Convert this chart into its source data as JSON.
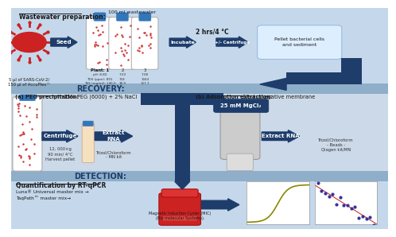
{
  "bg_top": "#c5d8eb",
  "bg_mid": "#ccd9e8",
  "bg_bot": "#ccd9e8",
  "bar_color": "#8eaec9",
  "arrow_color": "#1e3d6b",
  "white": "#ffffff",
  "section1_title": "Wastewater preparation:",
  "section2_title": "RECOVERY:",
  "section3_title": "DETECTION:",
  "virus_label": "5 µl of SARS-CoV-2/\n150 µl of AccuPlex™",
  "incubate_label": "2 hrs/4 °C",
  "centrifuge_label": "+/- Centrifuge",
  "pellet_label": "Pellet bacterial cells\nand sediment",
  "peg_title_a": "(a) PEG precipitation:",
  "peg_title_b": " 15% PEG (6000) + 2% NaCl",
  "centrifuge2_label": "Centrifuge",
  "centrifuge2_sub": "12, 000×g\n90 min/ 4°C\nHarvest pellet",
  "extract_rna1_label": "Extract\nRNA",
  "extract_rna1_sub": "Trizol/Chloroform\n- MN kit",
  "adsorption_title_a": "(b) Adsorption extraction:",
  "adsorption_title_b": " Electronegative membrane",
  "mgcl2_label": "25 mM MgCl₂",
  "extract_rna2_label": "Extract RNA",
  "extract_rna2_sub": "Trizol/Chloroform\n- Beads -\nQiagen kit/MN",
  "detection_title": "Quantification by RT-qPCR",
  "detection_sub": "Luna® Universal master mix →\nTaqPath™ master mix→",
  "mic_label": "Magnetic Induction Cycler (MIC)\n(Bio molecular Systems).",
  "plant_header": "100 ml wastewater",
  "plant_cols": [
    "Plant: 1",
    "2",
    "3"
  ],
  "ph_vals": [
    "pH: 8.80",
    "7.00",
    "7.08"
  ],
  "tds_vals": [
    "TDS (ppm): 891",
    "724",
    "1044"
  ],
  "tss_vals": [
    "TSS (mg/ml): 146.6",
    "18.9",
    "127.7"
  ]
}
